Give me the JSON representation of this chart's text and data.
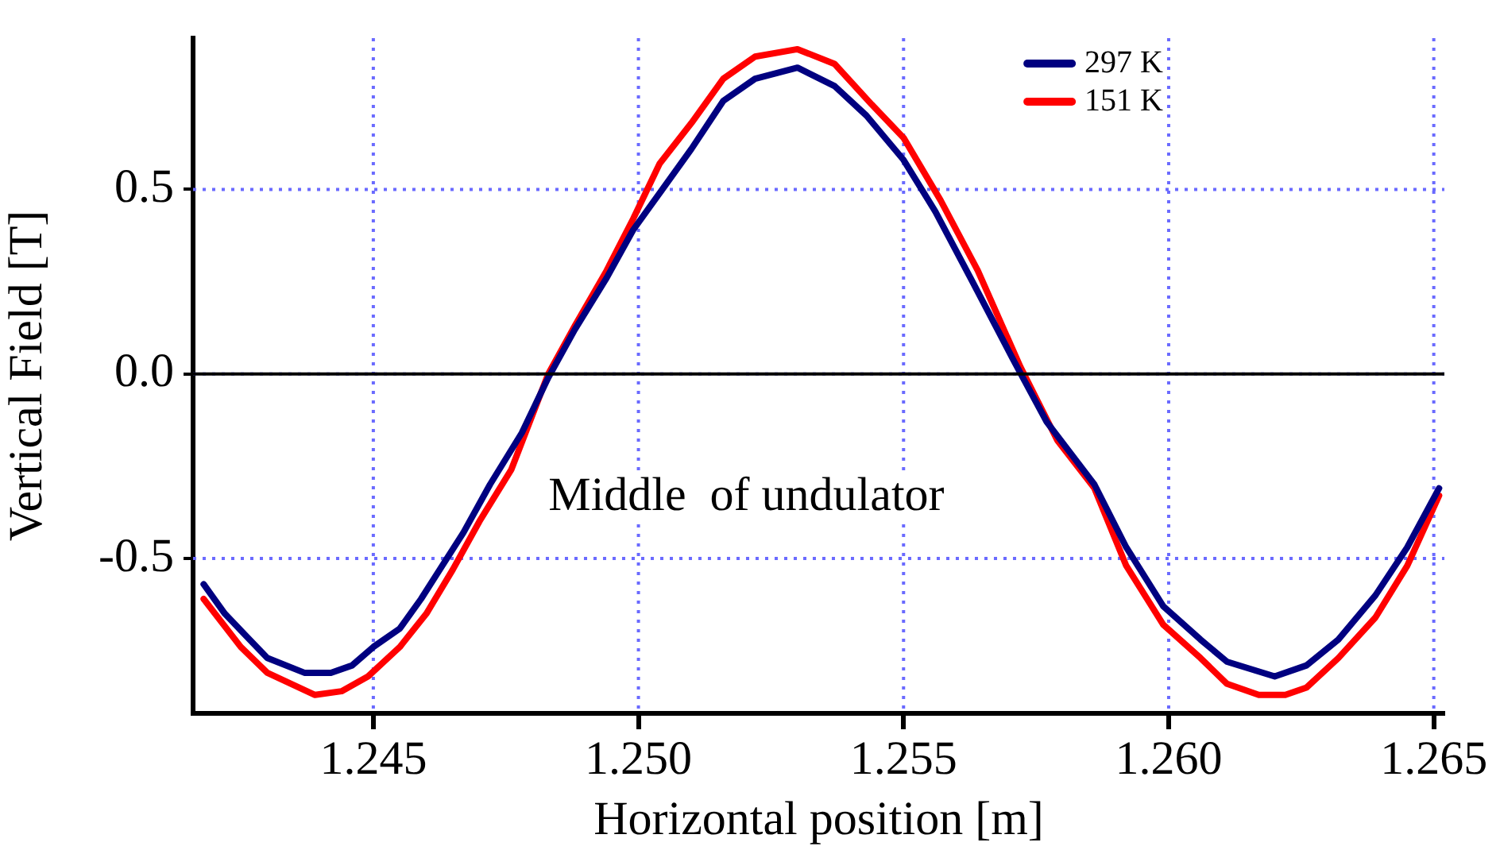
{
  "chart_data": {
    "type": "line",
    "xlabel": "Horizontal position [m]",
    "ylabel": "Vertical Field [T]",
    "xlim": [
      1.2416,
      1.2652
    ],
    "ylim": [
      -0.92,
      0.91
    ],
    "xticks": [
      1.245,
      {
        "value": 1.25,
        "label": "1.250"
      },
      1.255,
      {
        "value": 1.26,
        "label": "1.260"
      },
      1.265
    ],
    "yticks": [
      -0.5,
      {
        "value": 0,
        "label": "0.0"
      },
      0.5
    ],
    "grid": true,
    "legend": "top right",
    "marker": "none",
    "line_style": "solid",
    "ref_lines": [
      {
        "axis": "y",
        "value": 0,
        "color": "#000000"
      }
    ],
    "annotations": [
      "Middle  of undulator"
    ],
    "series": [
      {
        "name": "297 K",
        "color": "#000080",
        "x": [
          1.2418,
          1.2422,
          1.2426,
          1.243,
          1.2437,
          1.2442,
          1.2446,
          1.245,
          1.2455,
          1.2459,
          1.2463,
          1.2467,
          1.2472,
          1.2478,
          1.2483,
          1.2488,
          1.2494,
          1.2499,
          1.2504,
          1.251,
          1.2516,
          1.2522,
          1.253,
          1.2537,
          1.2543,
          1.255,
          1.2556,
          1.2563,
          1.2571,
          1.2577,
          1.2586,
          1.2592,
          1.2599,
          1.2606,
          1.2611,
          1.262,
          1.2626,
          1.2632,
          1.2639,
          1.2645,
          1.2651
        ],
        "values": [
          -0.57,
          -0.65,
          -0.71,
          -0.77,
          -0.81,
          -0.81,
          -0.79,
          -0.74,
          -0.69,
          -0.61,
          -0.52,
          -0.43,
          -0.3,
          -0.16,
          -0.01,
          0.12,
          0.26,
          0.39,
          0.49,
          0.61,
          0.74,
          0.8,
          0.83,
          0.78,
          0.7,
          0.58,
          0.44,
          0.25,
          0.03,
          -0.13,
          -0.3,
          -0.47,
          -0.63,
          -0.72,
          -0.78,
          -0.82,
          -0.79,
          -0.72,
          -0.6,
          -0.47,
          -0.31
        ]
      },
      {
        "name": "151 K",
        "color": "#ff0000",
        "x": [
          1.2418,
          1.2425,
          1.243,
          1.2439,
          1.2444,
          1.2449,
          1.2455,
          1.246,
          1.2465,
          1.247,
          1.2476,
          1.2483,
          1.2488,
          1.2494,
          1.2499,
          1.2504,
          1.251,
          1.2516,
          1.2522,
          1.253,
          1.2537,
          1.2544,
          1.255,
          1.2557,
          1.2564,
          1.2572,
          1.2579,
          1.2586,
          1.2592,
          1.2599,
          1.2606,
          1.2611,
          1.2617,
          1.2622,
          1.2626,
          1.2632,
          1.2639,
          1.2645,
          1.2651
        ],
        "values": [
          -0.61,
          -0.74,
          -0.81,
          -0.87,
          -0.86,
          -0.82,
          -0.74,
          -0.65,
          -0.53,
          -0.4,
          -0.26,
          0.0,
          0.13,
          0.28,
          0.42,
          0.57,
          0.68,
          0.8,
          0.86,
          0.88,
          0.84,
          0.73,
          0.64,
          0.47,
          0.28,
          0.02,
          -0.18,
          -0.31,
          -0.52,
          -0.68,
          -0.77,
          -0.84,
          -0.87,
          -0.87,
          -0.85,
          -0.77,
          -0.66,
          -0.52,
          -0.33
        ]
      }
    ]
  }
}
